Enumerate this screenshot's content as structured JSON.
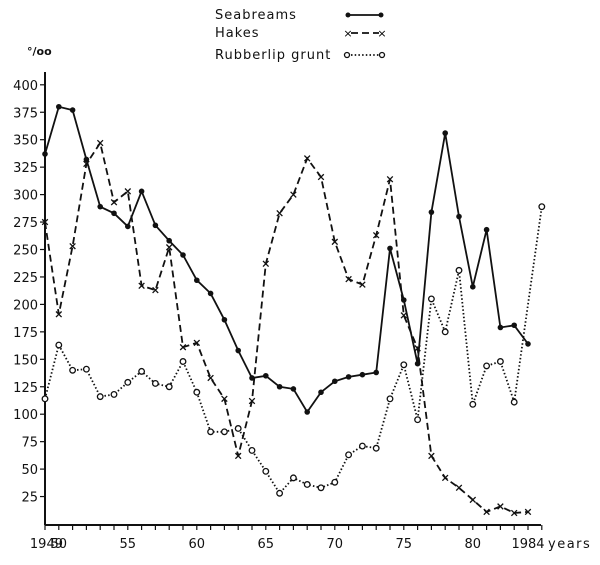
{
  "chart_data": {
    "type": "line",
    "title": "",
    "xlabel": "years",
    "ylabel": "°/oo",
    "xlim": [
      1949,
      1985
    ],
    "ylim": [
      0,
      410
    ],
    "grid": false,
    "legend_position": "top-center",
    "x_tick_labels": [
      {
        "year": 1949,
        "label": "1949"
      },
      {
        "year": 1950,
        "label": "50"
      },
      {
        "year": 1955,
        "label": "55"
      },
      {
        "year": 1960,
        "label": "60"
      },
      {
        "year": 1965,
        "label": "65"
      },
      {
        "year": 1970,
        "label": "70"
      },
      {
        "year": 1975,
        "label": "75"
      },
      {
        "year": 1980,
        "label": "80"
      },
      {
        "year": 1984,
        "label": "1984"
      }
    ],
    "y_ticks": [
      25,
      50,
      75,
      100,
      125,
      150,
      175,
      200,
      225,
      250,
      275,
      300,
      325,
      350,
      375,
      400
    ],
    "series": [
      {
        "name": "Seabreams",
        "style": "solid",
        "marker": "dot",
        "x": [
          1949,
          1950,
          1951,
          1952,
          1953,
          1954,
          1955,
          1956,
          1957,
          1958,
          1959,
          1960,
          1961,
          1962,
          1963,
          1964,
          1965,
          1966,
          1967,
          1968,
          1969,
          1970,
          1971,
          1972,
          1973,
          1974,
          1975,
          1976,
          1977,
          1978,
          1979,
          1980,
          1981,
          1982,
          1983,
          1984
        ],
        "values": [
          337,
          380,
          377,
          332,
          289,
          283,
          271,
          303,
          272,
          258,
          245,
          222,
          210,
          186,
          158,
          133,
          135,
          125,
          123,
          102,
          120,
          130,
          134,
          136,
          138,
          251,
          204,
          146,
          284,
          356,
          280,
          216,
          268,
          179,
          181,
          164
        ]
      },
      {
        "name": "Hakes",
        "style": "dashed",
        "marker": "x",
        "x": [
          1949,
          1950,
          1951,
          1952,
          1953,
          1954,
          1955,
          1956,
          1957,
          1958,
          1959,
          1960,
          1961,
          1962,
          1963,
          1964,
          1965,
          1966,
          1967,
          1968,
          1969,
          1970,
          1971,
          1972,
          1973,
          1974,
          1975,
          1976,
          1977,
          1978,
          1979,
          1980,
          1981,
          1982,
          1983,
          1984
        ],
        "values": [
          275,
          191,
          253,
          328,
          347,
          293,
          303,
          217,
          213,
          252,
          161,
          165,
          133,
          114,
          62,
          112,
          237,
          283,
          300,
          333,
          316,
          257,
          223,
          218,
          263,
          314,
          190,
          160,
          62,
          42,
          33,
          22,
          11,
          16,
          10,
          11
        ]
      },
      {
        "name": "Rubberlip grunt",
        "style": "dotted",
        "marker": "circle",
        "x": [
          1949,
          1950,
          1951,
          1952,
          1953,
          1954,
          1955,
          1956,
          1957,
          1958,
          1959,
          1960,
          1961,
          1962,
          1963,
          1964,
          1965,
          1966,
          1967,
          1968,
          1969,
          1970,
          1971,
          1972,
          1973,
          1974,
          1975,
          1976,
          1977,
          1978,
          1979,
          1980,
          1981,
          1982,
          1983,
          1985
        ],
        "values": [
          114,
          163,
          140,
          141,
          116,
          118,
          129,
          139,
          128,
          125,
          148,
          120,
          84,
          84,
          87,
          67,
          48,
          28,
          42,
          36,
          33,
          38,
          63,
          71,
          69,
          114,
          145,
          95,
          205,
          175,
          231,
          109,
          144,
          148,
          111,
          289
        ]
      }
    ]
  },
  "legend": {
    "items": [
      {
        "label": "Seabreams"
      },
      {
        "label": "Hakes"
      },
      {
        "label": "Rubberlip grunt"
      }
    ]
  },
  "axes": {
    "y_unit": "°/oo",
    "x_unit": "years"
  }
}
